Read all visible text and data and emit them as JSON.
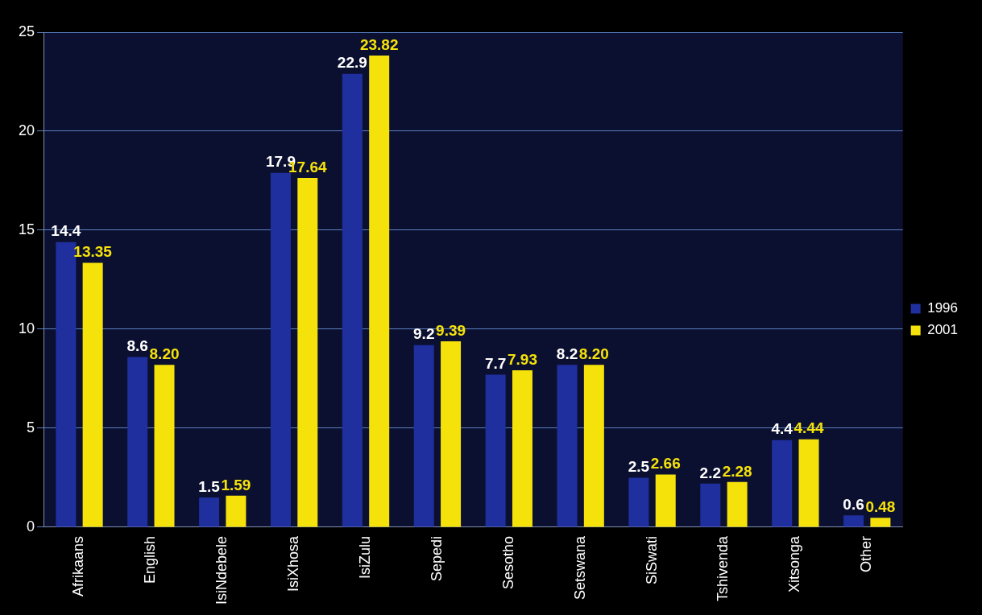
{
  "chart_data": {
    "type": "bar",
    "categories": [
      "Afrikaans",
      "English",
      "IsiNdebele",
      "IsiXhosa",
      "IsiZulu",
      "Sepedi",
      "Sesotho",
      "Setswana",
      "SiSwati",
      "Tshivenda",
      "Xitsonga",
      "Other"
    ],
    "series": [
      {
        "name": "1996",
        "color": "#1f2f9e",
        "values": [
          14.4,
          8.6,
          1.5,
          17.9,
          22.9,
          9.2,
          7.7,
          8.2,
          2.5,
          2.2,
          4.4,
          0.6
        ],
        "value_labels": [
          "14.4",
          "8.6",
          "1.5",
          "17.9",
          "22.9",
          "9.2",
          "7.7",
          "8.2",
          "2.5",
          "2.2",
          "4.4",
          "0.6"
        ]
      },
      {
        "name": "2001",
        "color": "#f5e20a",
        "values": [
          13.35,
          8.2,
          1.59,
          17.64,
          23.82,
          9.39,
          7.93,
          8.2,
          2.66,
          2.28,
          4.44,
          0.48
        ],
        "value_labels": [
          "13.35",
          "8.20",
          "1.59",
          "17.64",
          "23.82",
          "9.39",
          "7.93",
          "8.20",
          "2.66",
          "2.28",
          "4.44",
          "0.48"
        ]
      }
    ],
    "ylim": [
      0,
      25
    ],
    "yticks": [
      0,
      5,
      10,
      15,
      20,
      25
    ],
    "grid": "y",
    "legend": "right"
  }
}
